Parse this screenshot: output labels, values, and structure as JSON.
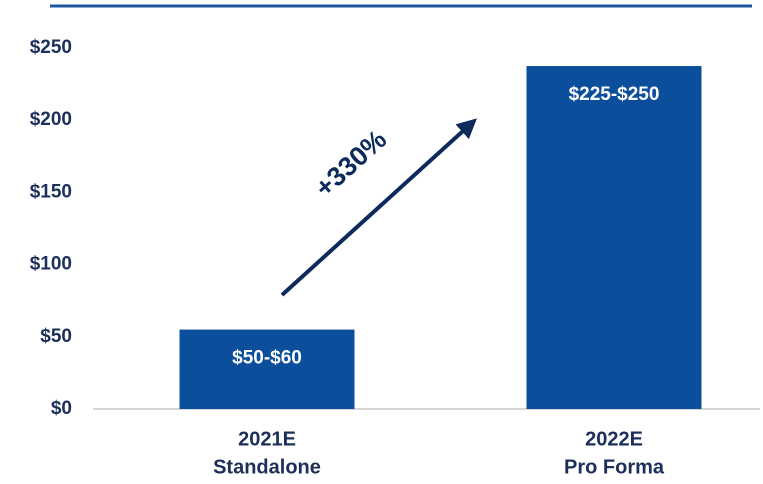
{
  "chart_data": {
    "type": "bar",
    "categories": [
      [
        "2021E",
        "Standalone"
      ],
      [
        "2022E",
        "Pro Forma"
      ]
    ],
    "values": [
      55,
      237.5
    ],
    "value_labels": [
      "$50-$60",
      "$225-$250"
    ],
    "color": "#0b4f9c",
    "ylim": [
      0,
      250
    ],
    "yticks": [
      {
        "value": 0,
        "label": "$0"
      },
      {
        "value": 50,
        "label": "$50"
      },
      {
        "value": 100,
        "label": "$100"
      },
      {
        "value": 150,
        "label": "$150"
      },
      {
        "value": 200,
        "label": "$200"
      },
      {
        "value": 250,
        "label": "$250"
      }
    ],
    "annotation": "+330%",
    "grid": false
  }
}
